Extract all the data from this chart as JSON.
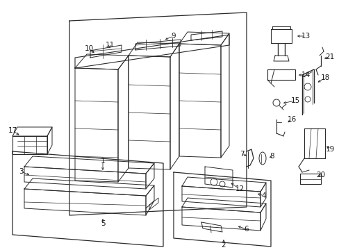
{
  "background_color": "#ffffff",
  "line_color": "#2a2a2a",
  "text_color": "#1a1a1a",
  "label_font_size": 7.5,
  "figsize": [
    4.89,
    3.6
  ],
  "dpi": 100
}
